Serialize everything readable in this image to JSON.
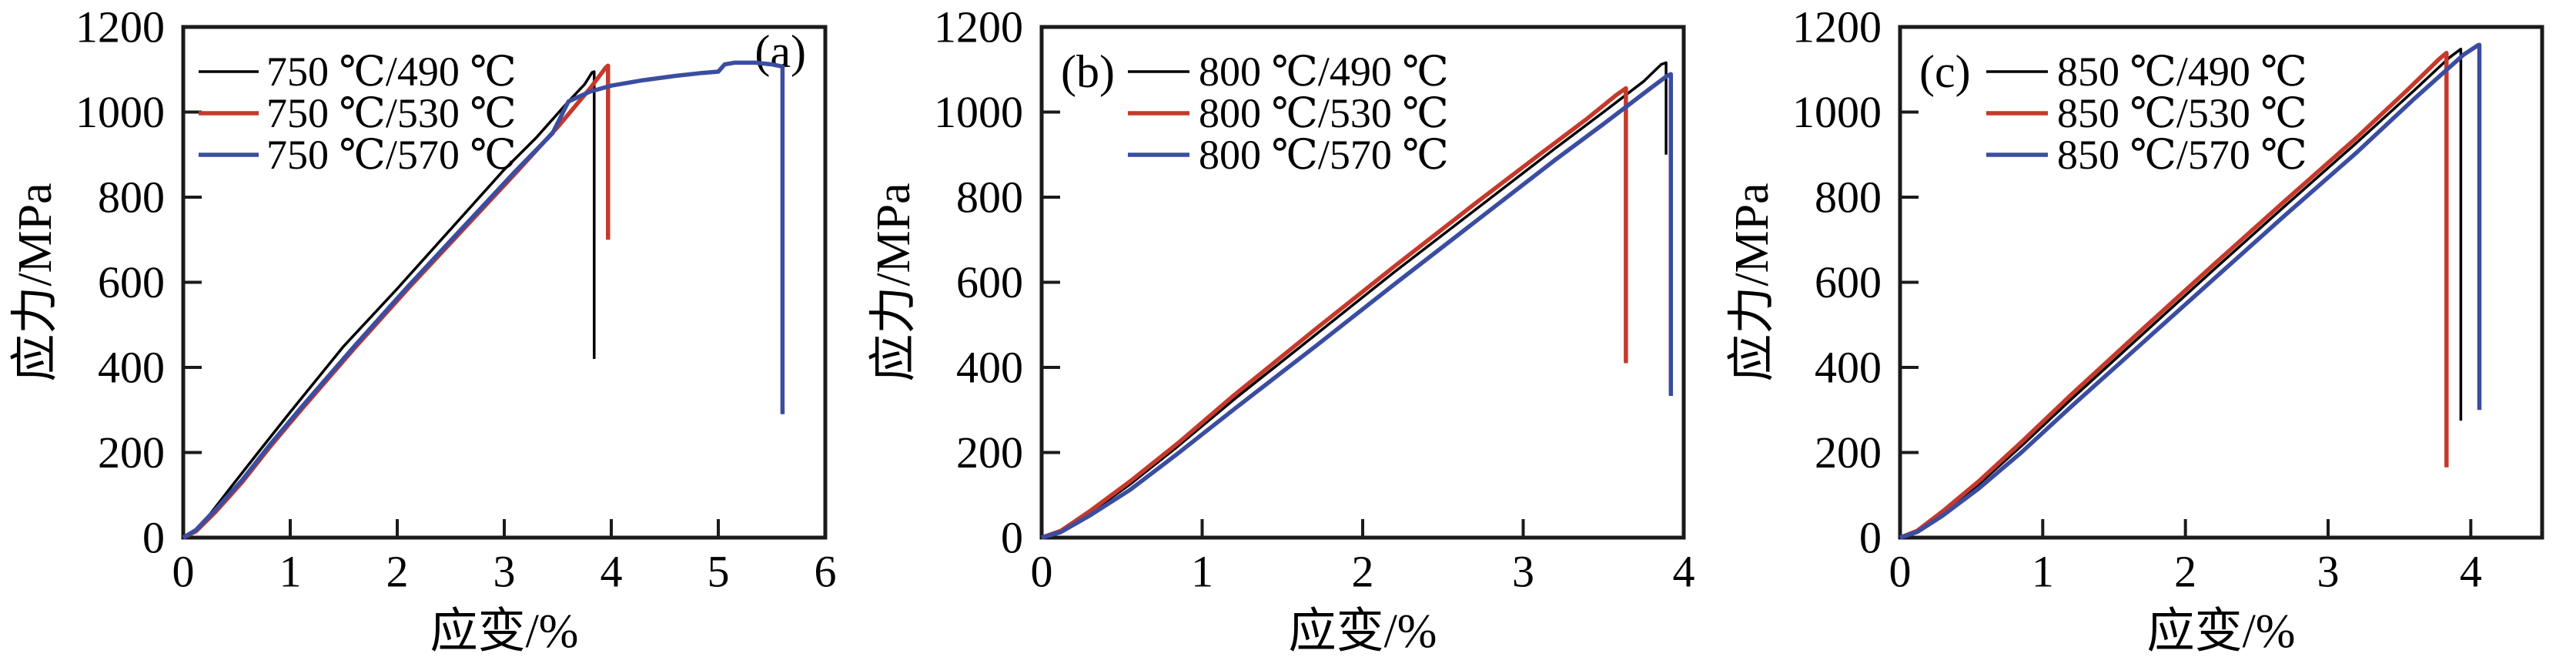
{
  "figure_title": "",
  "colors": {
    "black": "#000000",
    "red": "#c5392b",
    "blue": "#3b4da0",
    "frame": "#1a1a1a",
    "background": "#ffffff"
  },
  "chart_data": [
    {
      "type": "line",
      "panel_label": "(a)",
      "label_position": "top-right",
      "xlabel": "应变/%",
      "ylabel": "应力/MPa",
      "xlim": [
        0,
        6
      ],
      "ylim": [
        0,
        1200
      ],
      "xticks": [
        0,
        1,
        2,
        3,
        4,
        5,
        6
      ],
      "yticks": [
        0,
        200,
        400,
        600,
        800,
        1000,
        1200
      ],
      "grid": false,
      "legend_position": "top-left",
      "series": [
        {
          "key": "750-490",
          "name": "750 ℃/490 ℃",
          "color": "#000000",
          "width": 3.5,
          "points": [
            [
              0,
              0
            ],
            [
              0.1,
              15
            ],
            [
              0.25,
              55
            ],
            [
              0.45,
              120
            ],
            [
              0.7,
              200
            ],
            [
              1.0,
              295
            ],
            [
              1.5,
              450
            ],
            [
              2.0,
              585
            ],
            [
              2.5,
              725
            ],
            [
              3.0,
              865
            ],
            [
              3.3,
              940
            ],
            [
              3.6,
              1025
            ],
            [
              3.75,
              1065
            ],
            [
              3.82,
              1093
            ],
            [
              3.84,
              1095
            ],
            [
              3.84,
              420
            ]
          ]
        },
        {
          "key": "750-530",
          "name": "750 ℃/530 ℃",
          "color": "#c5392b",
          "width": 5.5,
          "points": [
            [
              0,
              0
            ],
            [
              0.12,
              15
            ],
            [
              0.3,
              60
            ],
            [
              0.55,
              130
            ],
            [
              0.8,
              210
            ],
            [
              1.1,
              300
            ],
            [
              1.6,
              445
            ],
            [
              2.1,
              585
            ],
            [
              2.6,
              720
            ],
            [
              3.1,
              855
            ],
            [
              3.5,
              965
            ],
            [
              3.8,
              1055
            ],
            [
              3.95,
              1105
            ],
            [
              3.97,
              1109
            ],
            [
              3.97,
              700
            ]
          ]
        },
        {
          "key": "750-570",
          "name": "750 ℃/570 ℃",
          "color": "#3b4da0",
          "width": 5.5,
          "points": [
            [
              0,
              0
            ],
            [
              0.12,
              18
            ],
            [
              0.3,
              65
            ],
            [
              0.55,
              135
            ],
            [
              0.8,
              215
            ],
            [
              1.1,
              305
            ],
            [
              1.6,
              450
            ],
            [
              2.1,
              590
            ],
            [
              2.6,
              725
            ],
            [
              3.1,
              860
            ],
            [
              3.45,
              950
            ],
            [
              3.6,
              1025
            ],
            [
              3.8,
              1048
            ],
            [
              4.0,
              1062
            ],
            [
              4.3,
              1075
            ],
            [
              4.6,
              1085
            ],
            [
              4.85,
              1092
            ],
            [
              5.0,
              1095
            ],
            [
              5.06,
              1112
            ],
            [
              5.15,
              1116
            ],
            [
              5.35,
              1116
            ],
            [
              5.5,
              1112
            ],
            [
              5.58,
              1108
            ],
            [
              5.6,
              1106
            ],
            [
              5.6,
              290
            ]
          ]
        }
      ]
    },
    {
      "type": "line",
      "panel_label": "(b)",
      "label_position": "top-left",
      "xlabel": "应变/%",
      "ylabel": "应力/MPa",
      "xlim": [
        0,
        4
      ],
      "ylim": [
        0,
        1200
      ],
      "xticks": [
        0,
        1,
        2,
        3,
        4
      ],
      "yticks": [
        0,
        200,
        400,
        600,
        800,
        1000,
        1200
      ],
      "grid": false,
      "legend_position": "top-left",
      "series": [
        {
          "key": "800-490",
          "name": "800 ℃/490 ℃",
          "color": "#000000",
          "width": 3.5,
          "points": [
            [
              0,
              0
            ],
            [
              0.12,
              15
            ],
            [
              0.3,
              58
            ],
            [
              0.55,
              125
            ],
            [
              0.85,
              215
            ],
            [
              1.2,
              325
            ],
            [
              1.7,
              475
            ],
            [
              2.2,
              625
            ],
            [
              2.7,
              770
            ],
            [
              3.2,
              915
            ],
            [
              3.5,
              1000
            ],
            [
              3.75,
              1072
            ],
            [
              3.86,
              1112
            ],
            [
              3.89,
              1116
            ],
            [
              3.89,
              900
            ]
          ]
        },
        {
          "key": "800-530",
          "name": "800 ℃/530 ℃",
          "color": "#c5392b",
          "width": 5.5,
          "points": [
            [
              0,
              0
            ],
            [
              0.12,
              16
            ],
            [
              0.3,
              62
            ],
            [
              0.55,
              132
            ],
            [
              0.85,
              222
            ],
            [
              1.2,
              335
            ],
            [
              1.7,
              488
            ],
            [
              2.2,
              638
            ],
            [
              2.7,
              785
            ],
            [
              3.1,
              900
            ],
            [
              3.4,
              985
            ],
            [
              3.58,
              1040
            ],
            [
              3.64,
              1056
            ],
            [
              3.64,
              410
            ]
          ]
        },
        {
          "key": "800-570",
          "name": "800 ℃/570 ℃",
          "color": "#3b4da0",
          "width": 5.5,
          "points": [
            [
              0,
              0
            ],
            [
              0.12,
              13
            ],
            [
              0.3,
              52
            ],
            [
              0.55,
              112
            ],
            [
              0.85,
              198
            ],
            [
              1.2,
              302
            ],
            [
              1.7,
              448
            ],
            [
              2.2,
              596
            ],
            [
              2.7,
              742
            ],
            [
              3.2,
              888
            ],
            [
              3.5,
              972
            ],
            [
              3.8,
              1058
            ],
            [
              3.9,
              1086
            ],
            [
              3.92,
              1089
            ],
            [
              3.92,
              333
            ]
          ]
        }
      ]
    },
    {
      "type": "line",
      "panel_label": "(c)",
      "label_position": "top-left",
      "xlabel": "应变/%",
      "ylabel": "应力/MPa",
      "xlim": [
        0,
        4.5
      ],
      "ylim": [
        0,
        1200
      ],
      "xticks": [
        0,
        1,
        2,
        3,
        4
      ],
      "yticks": [
        0,
        200,
        400,
        600,
        800,
        1000,
        1200
      ],
      "grid": false,
      "legend_position": "top-left",
      "series": [
        {
          "key": "850-490",
          "name": "850 ℃/490 ℃",
          "color": "#000000",
          "width": 3.5,
          "points": [
            [
              0,
              0
            ],
            [
              0.12,
              15
            ],
            [
              0.3,
              58
            ],
            [
              0.55,
              125
            ],
            [
              0.85,
              215
            ],
            [
              1.2,
              325
            ],
            [
              1.7,
              478
            ],
            [
              2.2,
              630
            ],
            [
              2.7,
              780
            ],
            [
              3.2,
              928
            ],
            [
              3.6,
              1050
            ],
            [
              3.85,
              1128
            ],
            [
              3.93,
              1148
            ],
            [
              3.93,
              275
            ]
          ]
        },
        {
          "key": "850-530",
          "name": "850 ℃/530 ℃",
          "color": "#c5392b",
          "width": 5.5,
          "points": [
            [
              0,
              0
            ],
            [
              0.12,
              16
            ],
            [
              0.3,
              62
            ],
            [
              0.55,
              132
            ],
            [
              0.85,
              224
            ],
            [
              1.2,
              336
            ],
            [
              1.7,
              490
            ],
            [
              2.2,
              642
            ],
            [
              2.7,
              792
            ],
            [
              3.2,
              940
            ],
            [
              3.55,
              1050
            ],
            [
              3.78,
              1125
            ],
            [
              3.83,
              1139
            ],
            [
              3.83,
              165
            ]
          ]
        },
        {
          "key": "850-570",
          "name": "850 ℃/570 ℃",
          "color": "#3b4da0",
          "width": 5.5,
          "points": [
            [
              0,
              0
            ],
            [
              0.12,
              13
            ],
            [
              0.3,
              52
            ],
            [
              0.55,
              115
            ],
            [
              0.85,
              200
            ],
            [
              1.2,
              308
            ],
            [
              1.7,
              458
            ],
            [
              2.2,
              608
            ],
            [
              2.7,
              758
            ],
            [
              3.2,
              905
            ],
            [
              3.6,
              1030
            ],
            [
              3.95,
              1135
            ],
            [
              4.05,
              1157
            ],
            [
              4.06,
              1158
            ],
            [
              4.06,
              300
            ]
          ]
        }
      ]
    }
  ]
}
